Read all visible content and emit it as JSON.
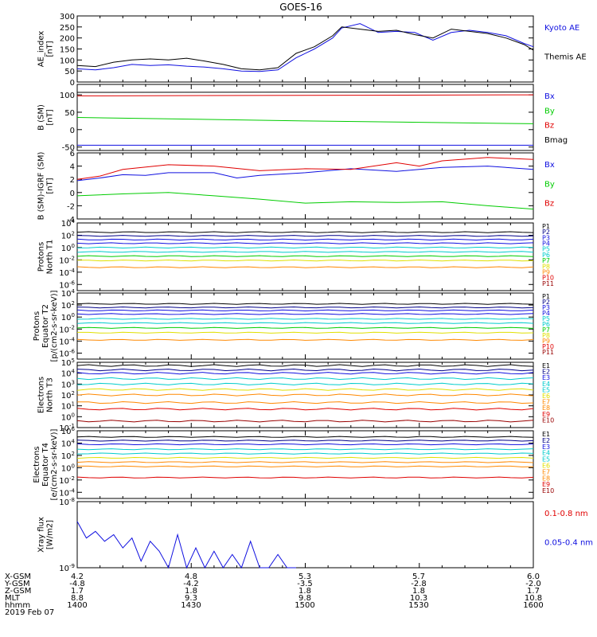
{
  "title": "GOES-16",
  "colors": {
    "black": "#000000",
    "blue": "#1010e0",
    "red": "#e00000",
    "green": "#00cc00",
    "navy": "#000088",
    "cyan": "#00cccc",
    "yellow": "#e0e000",
    "orange": "#ff8800",
    "darkred": "#990000"
  },
  "chart_data": [
    {
      "type": "line",
      "id": "ae",
      "ylabel": [
        "AE_index",
        "[nT]"
      ],
      "ylim": [
        0,
        300
      ],
      "yticks": [
        "300",
        "250",
        "200",
        "150",
        "100",
        "50",
        "0"
      ],
      "series": [
        {
          "name": "Kyoto AE",
          "color": "blue",
          "x": [
            0,
            0.04,
            0.08,
            0.12,
            0.16,
            0.2,
            0.24,
            0.28,
            0.32,
            0.36,
            0.4,
            0.44,
            0.48,
            0.52,
            0.56,
            0.58,
            0.62,
            0.66,
            0.7,
            0.74,
            0.78,
            0.82,
            0.86,
            0.9,
            0.94,
            0.98,
            1
          ],
          "y": [
            60,
            55,
            65,
            80,
            75,
            78,
            72,
            68,
            60,
            50,
            48,
            55,
            110,
            150,
            200,
            245,
            265,
            225,
            230,
            225,
            190,
            225,
            235,
            225,
            210,
            175,
            160
          ]
        },
        {
          "name": "Themis AE",
          "color": "black",
          "x": [
            0,
            0.04,
            0.08,
            0.12,
            0.16,
            0.2,
            0.24,
            0.28,
            0.32,
            0.36,
            0.4,
            0.44,
            0.48,
            0.52,
            0.56,
            0.58,
            0.62,
            0.66,
            0.7,
            0.74,
            0.78,
            0.82,
            0.86,
            0.9,
            0.94,
            0.98,
            1
          ],
          "y": [
            75,
            70,
            90,
            100,
            105,
            100,
            108,
            95,
            80,
            60,
            55,
            65,
            130,
            160,
            210,
            250,
            240,
            230,
            235,
            215,
            200,
            240,
            230,
            220,
            200,
            170,
            145
          ]
        }
      ]
    },
    {
      "type": "line",
      "id": "b",
      "ylabel": [
        "B (SM)",
        "[nT]"
      ],
      "ylim": [
        -60,
        130
      ],
      "yticks": [
        "100",
        "50",
        "0",
        "-50"
      ],
      "series": [
        {
          "name": "Bx",
          "color": "blue",
          "x": [
            0,
            1
          ],
          "y": [
            -45,
            -45
          ]
        },
        {
          "name": "By",
          "color": "green",
          "x": [
            0,
            0.5,
            1
          ],
          "y": [
            35,
            25,
            17
          ]
        },
        {
          "name": "Bz",
          "color": "red",
          "x": [
            0,
            1
          ],
          "y": [
            97,
            100
          ]
        },
        {
          "name": "Bmag",
          "color": "black",
          "x": [
            0,
            1
          ],
          "y": [
            107,
            108
          ]
        }
      ]
    },
    {
      "type": "line",
      "id": "dbsm",
      "ylabel": [
        "B (SM)-IGRF (SM)",
        "[nT]"
      ],
      "ylim": [
        -4,
        6
      ],
      "yticks": [
        "6",
        "4",
        "2",
        "0",
        "-2",
        "-4"
      ],
      "series": [
        {
          "name": "Bx",
          "color": "blue",
          "x": [
            0,
            0.05,
            0.1,
            0.15,
            0.2,
            0.3,
            0.35,
            0.4,
            0.5,
            0.6,
            0.7,
            0.8,
            0.9,
            1
          ],
          "y": [
            1.8,
            2.2,
            2.7,
            2.6,
            3.0,
            3.0,
            2.2,
            2.6,
            3.0,
            3.6,
            3.2,
            3.8,
            4.0,
            3.5
          ]
        },
        {
          "name": "By",
          "color": "green",
          "x": [
            0,
            0.1,
            0.2,
            0.3,
            0.4,
            0.5,
            0.6,
            0.7,
            0.8,
            0.9,
            1
          ],
          "y": [
            -0.5,
            -0.2,
            0,
            -0.5,
            -1.0,
            -1.6,
            -1.4,
            -1.5,
            -1.4,
            -2.0,
            -2.5
          ]
        },
        {
          "name": "Bz",
          "color": "red",
          "x": [
            0,
            0.05,
            0.1,
            0.2,
            0.3,
            0.4,
            0.5,
            0.6,
            0.7,
            0.75,
            0.8,
            0.9,
            1
          ],
          "y": [
            2.0,
            2.5,
            3.5,
            4.2,
            4.0,
            3.3,
            3.6,
            3.5,
            4.5,
            4.0,
            4.8,
            5.3,
            5.0
          ]
        }
      ]
    },
    {
      "type": "line",
      "id": "pn",
      "ylabel": [
        "Protons",
        "North T1"
      ],
      "ylog": [
        -7,
        4
      ],
      "yticks": [
        "10^4",
        "10^2",
        "10^0",
        "10^-2",
        "10^-4",
        "10^-6"
      ],
      "legend": [
        "P1",
        "P2",
        "P3",
        "P4",
        "P5",
        "P6",
        "P7",
        "P8",
        "P9",
        "P10",
        "P11"
      ],
      "legend_colors": [
        "black",
        "navy",
        "blue",
        "blue",
        "cyan",
        "cyan",
        "green",
        "yellow",
        "orange",
        "red",
        "darkred"
      ],
      "levels": [
        2.5,
        1.9,
        1.3,
        0.7,
        0,
        -0.7,
        -1.4,
        -2.1,
        -3.2
      ]
    },
    {
      "type": "line",
      "id": "pe",
      "ylabel": [
        "Protons",
        "Equator T2",
        "[p/(cm2-s-sr-keV)]"
      ],
      "ylog": [
        -7,
        4
      ],
      "yticks": [
        "10^4",
        "10^2",
        "10^0",
        "10^-2",
        "10^-4",
        "10^-6"
      ],
      "legend": [
        "P1",
        "P2",
        "P3",
        "P4",
        "P5",
        "P6",
        "P7",
        "P8",
        "P9",
        "P10",
        "P11"
      ],
      "legend_colors": [
        "black",
        "navy",
        "blue",
        "blue",
        "cyan",
        "cyan",
        "green",
        "yellow",
        "orange",
        "red",
        "darkred"
      ],
      "levels": [
        2.2,
        1.6,
        1.1,
        0.5,
        -0.3,
        -1.0,
        -1.8,
        -2.6,
        -3.8
      ]
    },
    {
      "type": "line",
      "id": "en",
      "ylabel": [
        "Electrons",
        "North T3"
      ],
      "ylog": [
        -1,
        5
      ],
      "yticks": [
        "10^5",
        "10^4",
        "10^3",
        "10^2",
        "10^1",
        "10^0",
        "10^-1"
      ],
      "legend": [
        "E1",
        "E2",
        "E3",
        "E4",
        "E5",
        "E6",
        "E7",
        "E8",
        "E9",
        "E10"
      ],
      "legend_colors": [
        "black",
        "navy",
        "blue",
        "cyan",
        "cyan",
        "yellow",
        "orange",
        "orange",
        "red",
        "darkred"
      ],
      "levels": [
        4.7,
        4.3,
        4.0,
        3.5,
        3.0,
        2.5,
        2.0,
        1.3,
        0.7,
        -0.4
      ]
    },
    {
      "type": "line",
      "id": "ee",
      "ylabel": [
        "Electrons",
        "Equator T4",
        "[e/(cm2-s-sr-keV)]"
      ],
      "ylog": [
        -5,
        6
      ],
      "yticks": [
        "10^6",
        "10^4",
        "10^2",
        "10^0",
        "10^-2",
        "10^-4"
      ],
      "legend": [
        "E1",
        "E2",
        "E3",
        "E4",
        "E5",
        "E6",
        "E7",
        "E8",
        "E9",
        "E10"
      ],
      "legend_colors": [
        "black",
        "navy",
        "blue",
        "cyan",
        "cyan",
        "yellow",
        "orange",
        "orange",
        "red",
        "darkred"
      ],
      "levels": [
        5.0,
        4.4,
        3.8,
        3.0,
        2.3,
        1.6,
        0.9,
        0.2,
        -1.6
      ]
    },
    {
      "type": "line",
      "id": "xray",
      "ylabel": [
        "Xray flux",
        "[W/m2]"
      ],
      "ylog": [
        -9,
        -8
      ],
      "yticks": [
        "10^-8",
        "10^-9"
      ],
      "series": [
        {
          "name": "0.1-0.8 nm",
          "color": "red",
          "x": [],
          "y": []
        },
        {
          "name": "0.05-0.4 nm",
          "color": "blue",
          "x": [
            0,
            0.02,
            0.04,
            0.06,
            0.08,
            0.1,
            0.12,
            0.14,
            0.16,
            0.18,
            0.2,
            0.22,
            0.24,
            0.26,
            0.28,
            0.3,
            0.32,
            0.34,
            0.36,
            0.38,
            0.4,
            0.42,
            0.44,
            0.46,
            0.48
          ],
          "y": [
            -8.3,
            -8.55,
            -8.45,
            -8.6,
            -8.5,
            -8.7,
            -8.55,
            -8.9,
            -8.6,
            -8.75,
            -9.0,
            -8.5,
            -9.0,
            -8.7,
            -9.0,
            -8.75,
            -9.0,
            -8.8,
            -9.0,
            -8.6,
            -9.0,
            -9.0,
            -8.8,
            -9.0,
            -9.0
          ]
        }
      ]
    }
  ],
  "orbit": {
    "labels": [
      "X-GSM",
      "Y-GSM",
      "Z-GSM",
      "MLT",
      "hhmm"
    ],
    "date": "2019 Feb 07",
    "columns": [
      [
        "4.2",
        "-4.8",
        "1.7",
        "8.8",
        "1400"
      ],
      [
        "4.8",
        "-4.2",
        "1.8",
        "9.3",
        "1430"
      ],
      [
        "5.3",
        "-3.5",
        "1.8",
        "9.8",
        "1500"
      ],
      [
        "5.7",
        "-2.8",
        "1.8",
        "10.3",
        "1530"
      ],
      [
        "6.0",
        "-2.0",
        "1.7",
        "10.8",
        "1600"
      ]
    ]
  }
}
